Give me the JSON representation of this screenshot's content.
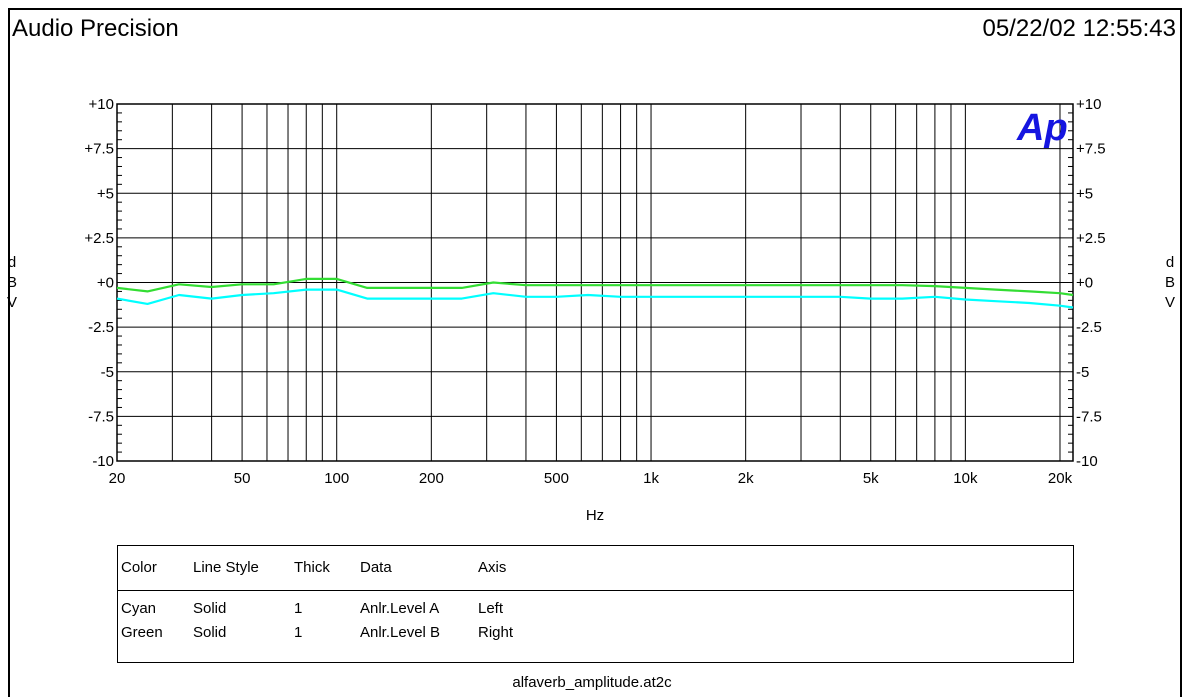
{
  "header": {
    "title": "Audio Precision",
    "timestamp": "05/22/02 12:55:43"
  },
  "logo": {
    "text": "Ap"
  },
  "chart_data": {
    "type": "line",
    "xscale": "log",
    "xlim": [
      20,
      22000
    ],
    "ylim": [
      -10,
      10
    ],
    "xlabel": "Hz",
    "ylabel_left": "dBV",
    "ylabel_right": "dBV",
    "x_ticks": [
      {
        "v": 20,
        "label": "20"
      },
      {
        "v": 50,
        "label": "50"
      },
      {
        "v": 100,
        "label": "100"
      },
      {
        "v": 200,
        "label": "200"
      },
      {
        "v": 500,
        "label": "500"
      },
      {
        "v": 1000,
        "label": "1k"
      },
      {
        "v": 2000,
        "label": "2k"
      },
      {
        "v": 5000,
        "label": "5k"
      },
      {
        "v": 10000,
        "label": "10k"
      },
      {
        "v": 20000,
        "label": "20k"
      }
    ],
    "x_grid": [
      30,
      40,
      50,
      60,
      70,
      80,
      90,
      100,
      200,
      300,
      400,
      500,
      600,
      700,
      800,
      900,
      1000,
      2000,
      3000,
      4000,
      5000,
      6000,
      7000,
      8000,
      9000,
      10000,
      20000
    ],
    "y_ticks_left": [
      {
        "v": 10,
        "label": "+10"
      },
      {
        "v": 7.5,
        "label": "+7.5"
      },
      {
        "v": 5,
        "label": "+5"
      },
      {
        "v": 2.5,
        "label": "+2.5"
      },
      {
        "v": 0,
        "label": "+0"
      },
      {
        "v": -2.5,
        "label": "-2.5"
      },
      {
        "v": -5,
        "label": "-5"
      },
      {
        "v": -7.5,
        "label": "-7.5"
      },
      {
        "v": -10,
        "label": "-10"
      }
    ],
    "y_ticks_right": [
      {
        "v": 10,
        "label": "+10"
      },
      {
        "v": 7.5,
        "label": "+7.5"
      },
      {
        "v": 5,
        "label": "+5"
      },
      {
        "v": 2.5,
        "label": "+2.5"
      },
      {
        "v": 0,
        "label": "+0"
      },
      {
        "v": -2.5,
        "label": "-2.5"
      },
      {
        "v": -5,
        "label": "-5"
      },
      {
        "v": -7.5,
        "label": "-7.5"
      },
      {
        "v": -10,
        "label": "-10"
      }
    ],
    "grid": true,
    "series": [
      {
        "name": "Anlr.Level A",
        "color": "#00ffff",
        "x": [
          20,
          25,
          31.5,
          40,
          50,
          63,
          80,
          100,
          125,
          160,
          200,
          250,
          315,
          400,
          500,
          630,
          800,
          1000,
          1250,
          1600,
          2000,
          2500,
          3150,
          4000,
          5000,
          6300,
          8000,
          10000,
          12500,
          16000,
          20000,
          22000
        ],
        "values": [
          -0.9,
          -1.2,
          -0.7,
          -0.9,
          -0.7,
          -0.6,
          -0.4,
          -0.4,
          -0.9,
          -0.9,
          -0.9,
          -0.9,
          -0.6,
          -0.8,
          -0.8,
          -0.7,
          -0.8,
          -0.8,
          -0.8,
          -0.8,
          -0.8,
          -0.8,
          -0.8,
          -0.8,
          -0.9,
          -0.9,
          -0.8,
          -0.95,
          -1.05,
          -1.15,
          -1.3,
          -1.4
        ]
      },
      {
        "name": "Anlr.Level B",
        "color": "#33dd33",
        "x": [
          20,
          25,
          31.5,
          40,
          50,
          63,
          80,
          100,
          125,
          160,
          200,
          250,
          315,
          400,
          500,
          630,
          800,
          1000,
          1250,
          1600,
          2000,
          2500,
          3150,
          4000,
          5000,
          6300,
          8000,
          10000,
          12500,
          16000,
          20000,
          22000
        ],
        "values": [
          -0.3,
          -0.5,
          -0.1,
          -0.25,
          -0.1,
          -0.1,
          0.2,
          0.2,
          -0.3,
          -0.3,
          -0.3,
          -0.3,
          0.0,
          -0.15,
          -0.15,
          -0.15,
          -0.15,
          -0.15,
          -0.15,
          -0.15,
          -0.15,
          -0.15,
          -0.15,
          -0.15,
          -0.15,
          -0.15,
          -0.2,
          -0.3,
          -0.4,
          -0.5,
          -0.6,
          -0.7
        ]
      }
    ]
  },
  "legend": {
    "headers": [
      "Color",
      "Line Style",
      "Thick",
      "Data",
      "Axis"
    ],
    "rows": [
      [
        "Cyan",
        "Solid",
        "1",
        "Anlr.Level A",
        "Left"
      ],
      [
        "Green",
        "Solid",
        "1",
        "Anlr.Level B",
        "Right"
      ]
    ]
  },
  "footer": {
    "filename": "alfaverb_amplitude.at2c"
  }
}
